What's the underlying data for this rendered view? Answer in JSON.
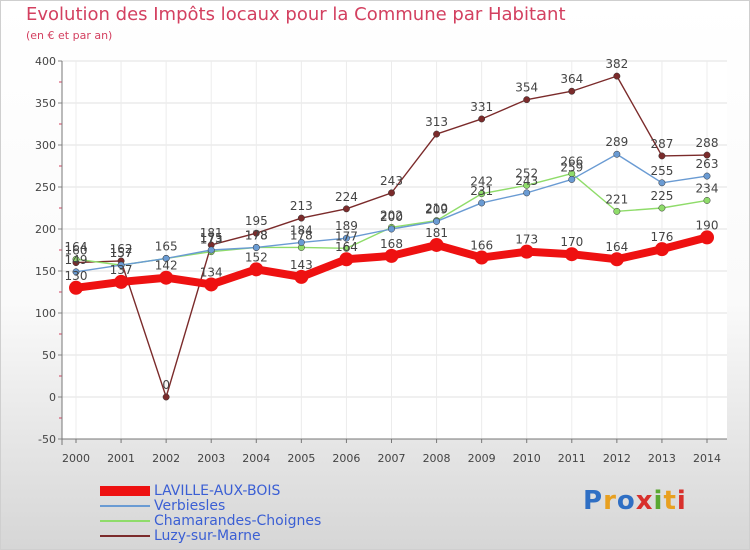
{
  "title": "Evolution des Impôts locaux pour la Commune par Habitant",
  "subtitle": "(en € et par an)",
  "logo": {
    "text": "Proxiti",
    "colors": [
      "#2f6fc4",
      "#e8a020",
      "#2f6fc4",
      "#d8302c",
      "#5aa832",
      "#e8a020",
      "#d8302c"
    ]
  },
  "chart_data": {
    "type": "line",
    "x": [
      2000,
      2001,
      2002,
      2003,
      2004,
      2005,
      2006,
      2007,
      2008,
      2009,
      2010,
      2011,
      2012,
      2013,
      2014
    ],
    "ylim": [
      -50,
      400
    ],
    "yticks": [
      -50,
      0,
      50,
      100,
      150,
      200,
      250,
      300,
      350,
      400
    ],
    "grid": true,
    "legend_position": "bottom-left",
    "series": [
      {
        "name": "LAVILLE-AUX-BOIS",
        "color": "#ee1111",
        "values": [
          130,
          137,
          142,
          134,
          152,
          143,
          164,
          168,
          181,
          166,
          173,
          170,
          164,
          176,
          190
        ],
        "labels": [
          "130",
          "137",
          "142",
          "134",
          "152",
          "143",
          "164",
          "168",
          "181",
          "166",
          "173",
          "170",
          "164",
          "176",
          "190"
        ]
      },
      {
        "name": "Verbiesles",
        "color": "#6a9bd3",
        "values": [
          149,
          157,
          165,
          175,
          178,
          184,
          189,
          200,
          209,
          231,
          243,
          259,
          289,
          255,
          263
        ],
        "labels": [
          "149",
          "157",
          "",
          "175",
          "178",
          "184",
          "189",
          "200",
          "209",
          "231",
          "243",
          "259",
          "289",
          "255",
          "263"
        ]
      },
      {
        "name": "Chamarandes-Choignes",
        "color": "#8fdc6a",
        "values": [
          164,
          157,
          165,
          173,
          178,
          178,
          177,
          202,
          210,
          242,
          252,
          266,
          221,
          225,
          234
        ],
        "labels": [
          "164",
          "157",
          "165",
          "173",
          "178",
          "178",
          "177",
          "202",
          "210",
          "242",
          "252",
          "266",
          "221",
          "225",
          "234"
        ]
      },
      {
        "name": "Luzy-sur-Marne",
        "color": "#7b2b2b",
        "values": [
          160,
          162,
          0,
          181,
          195,
          213,
          224,
          243,
          313,
          331,
          354,
          364,
          382,
          287,
          288
        ],
        "labels": [
          "160",
          "162",
          "0",
          "181",
          "195",
          "213",
          "224",
          "243",
          "313",
          "331",
          "354",
          "364",
          "382",
          "287",
          "288"
        ]
      }
    ]
  }
}
